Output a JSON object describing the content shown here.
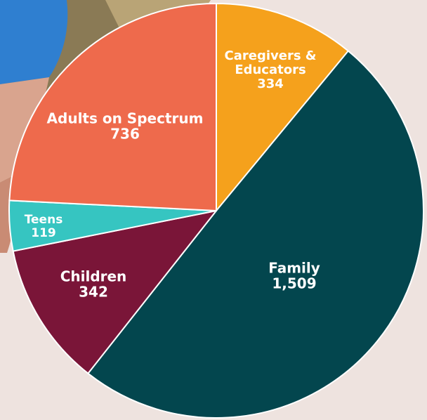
{
  "chart_data": {
    "type": "pie",
    "categories": [
      "Caregivers & Educators",
      "Family",
      "Children",
      "Teens",
      "Adults on Spectrum"
    ],
    "values": [
      334,
      1509,
      342,
      119,
      736
    ],
    "value_labels": [
      "334",
      "1,509",
      "342",
      "119",
      "736"
    ],
    "colors": [
      "#f5a11c",
      "#03464e",
      "#7a1538",
      "#36c5c1",
      "#ee6a4c"
    ]
  }
}
